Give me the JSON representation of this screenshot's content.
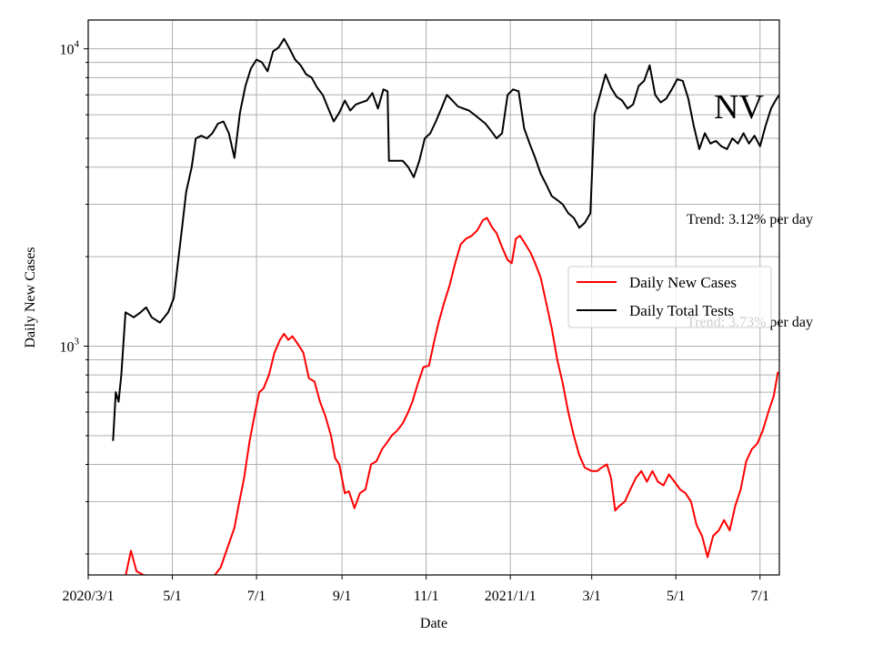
{
  "chart_data": {
    "type": "line",
    "title": "",
    "xlabel": "Date",
    "ylabel": "Daily New Cases",
    "yscale": "log",
    "ylim": [
      170,
      12500
    ],
    "xlim": [
      "2020-03-01",
      "2021-07-15"
    ],
    "grid": true,
    "legend_position": "center-right",
    "x_ticks": [
      {
        "date": "2020-03-01",
        "label": "2020/3/1"
      },
      {
        "date": "2020-05-01",
        "label": "5/1"
      },
      {
        "date": "2020-07-01",
        "label": "7/1"
      },
      {
        "date": "2020-09-01",
        "label": "9/1"
      },
      {
        "date": "2020-11-01",
        "label": "11/1"
      },
      {
        "date": "2021-01-01",
        "label": "2021/1/1"
      },
      {
        "date": "2021-03-01",
        "label": "3/1"
      },
      {
        "date": "2021-05-01",
        "label": "5/1"
      },
      {
        "date": "2021-07-01",
        "label": "7/1"
      }
    ],
    "y_major_ticks": [
      {
        "value": 1000,
        "base": "10",
        "exp": "3"
      },
      {
        "value": 10000,
        "base": "10",
        "exp": "4"
      }
    ],
    "y_minor_ticks": [
      200,
      300,
      400,
      500,
      600,
      700,
      800,
      900,
      2000,
      3000,
      4000,
      5000,
      6000,
      7000,
      8000,
      9000
    ],
    "annotations": {
      "state": "NV",
      "trend_cases": "Trend: 3.73% per day",
      "trend_tests": "Trend: 3.12% per day"
    },
    "series": [
      {
        "name": "Daily New Cases",
        "color": "#ff0000",
        "points": [
          [
            "2020-03-18",
            150
          ],
          [
            "2020-03-28",
            168
          ],
          [
            "2020-04-01",
            205
          ],
          [
            "2020-04-05",
            175
          ],
          [
            "2020-04-10",
            170
          ],
          [
            "2020-04-20",
            165
          ],
          [
            "2020-05-01",
            160
          ],
          [
            "2020-05-15",
            150
          ],
          [
            "2020-05-31",
            168
          ],
          [
            "2020-06-05",
            180
          ],
          [
            "2020-06-10",
            210
          ],
          [
            "2020-06-15",
            245
          ],
          [
            "2020-06-18",
            290
          ],
          [
            "2020-06-22",
            360
          ],
          [
            "2020-06-26",
            480
          ],
          [
            "2020-06-30",
            600
          ],
          [
            "2020-07-03",
            700
          ],
          [
            "2020-07-06",
            720
          ],
          [
            "2020-07-10",
            800
          ],
          [
            "2020-07-14",
            950
          ],
          [
            "2020-07-18",
            1050
          ],
          [
            "2020-07-21",
            1100
          ],
          [
            "2020-07-24",
            1050
          ],
          [
            "2020-07-27",
            1080
          ],
          [
            "2020-08-01",
            1000
          ],
          [
            "2020-08-04",
            950
          ],
          [
            "2020-08-08",
            780
          ],
          [
            "2020-08-12",
            760
          ],
          [
            "2020-08-16",
            650
          ],
          [
            "2020-08-20",
            580
          ],
          [
            "2020-08-24",
            500
          ],
          [
            "2020-08-27",
            420
          ],
          [
            "2020-08-30",
            400
          ],
          [
            "2020-09-03",
            320
          ],
          [
            "2020-09-06",
            325
          ],
          [
            "2020-09-10",
            285
          ],
          [
            "2020-09-14",
            320
          ],
          [
            "2020-09-18",
            330
          ],
          [
            "2020-09-22",
            400
          ],
          [
            "2020-09-26",
            410
          ],
          [
            "2020-09-30",
            450
          ],
          [
            "2020-10-03",
            470
          ],
          [
            "2020-10-07",
            500
          ],
          [
            "2020-10-11",
            520
          ],
          [
            "2020-10-15",
            550
          ],
          [
            "2020-10-19",
            600
          ],
          [
            "2020-10-22",
            650
          ],
          [
            "2020-10-26",
            750
          ],
          [
            "2020-10-30",
            850
          ],
          [
            "2020-11-03",
            860
          ],
          [
            "2020-11-07",
            1050
          ],
          [
            "2020-11-10",
            1200
          ],
          [
            "2020-11-14",
            1400
          ],
          [
            "2020-11-18",
            1600
          ],
          [
            "2020-11-22",
            1900
          ],
          [
            "2020-11-26",
            2200
          ],
          [
            "2020-11-30",
            2300
          ],
          [
            "2020-12-04",
            2350
          ],
          [
            "2020-12-08",
            2450
          ],
          [
            "2020-12-12",
            2650
          ],
          [
            "2020-12-15",
            2700
          ],
          [
            "2020-12-19",
            2500
          ],
          [
            "2020-12-22",
            2400
          ],
          [
            "2020-12-26",
            2150
          ],
          [
            "2020-12-30",
            1950
          ],
          [
            "2021-01-02",
            1900
          ],
          [
            "2021-01-05",
            2300
          ],
          [
            "2021-01-08",
            2350
          ],
          [
            "2021-01-12",
            2200
          ],
          [
            "2021-01-16",
            2050
          ],
          [
            "2021-01-19",
            1900
          ],
          [
            "2021-01-23",
            1700
          ],
          [
            "2021-01-27",
            1400
          ],
          [
            "2021-01-31",
            1150
          ],
          [
            "2021-02-04",
            900
          ],
          [
            "2021-02-08",
            750
          ],
          [
            "2021-02-12",
            600
          ],
          [
            "2021-02-16",
            500
          ],
          [
            "2021-02-20",
            430
          ],
          [
            "2021-02-24",
            390
          ],
          [
            "2021-03-01",
            380
          ],
          [
            "2021-03-05",
            380
          ],
          [
            "2021-03-08",
            390
          ],
          [
            "2021-03-12",
            400
          ],
          [
            "2021-03-15",
            360
          ],
          [
            "2021-03-18",
            280
          ],
          [
            "2021-03-21",
            290
          ],
          [
            "2021-03-25",
            300
          ],
          [
            "2021-03-29",
            330
          ],
          [
            "2021-04-02",
            360
          ],
          [
            "2021-04-06",
            380
          ],
          [
            "2021-04-10",
            350
          ],
          [
            "2021-04-14",
            380
          ],
          [
            "2021-04-18",
            350
          ],
          [
            "2021-04-22",
            340
          ],
          [
            "2021-04-26",
            370
          ],
          [
            "2021-04-30",
            350
          ],
          [
            "2021-05-04",
            330
          ],
          [
            "2021-05-08",
            320
          ],
          [
            "2021-05-12",
            300
          ],
          [
            "2021-05-16",
            250
          ],
          [
            "2021-05-20",
            230
          ],
          [
            "2021-05-24",
            195
          ],
          [
            "2021-05-28",
            230
          ],
          [
            "2021-06-01",
            240
          ],
          [
            "2021-06-05",
            260
          ],
          [
            "2021-06-09",
            240
          ],
          [
            "2021-06-13",
            290
          ],
          [
            "2021-06-17",
            330
          ],
          [
            "2021-06-21",
            410
          ],
          [
            "2021-06-25",
            450
          ],
          [
            "2021-06-29",
            470
          ],
          [
            "2021-07-03",
            520
          ],
          [
            "2021-07-07",
            600
          ],
          [
            "2021-07-11",
            680
          ],
          [
            "2021-07-14",
            820
          ]
        ]
      },
      {
        "name": "Daily Total Tests",
        "color": "#000000",
        "points": [
          [
            "2020-03-19",
            480
          ],
          [
            "2020-03-21",
            700
          ],
          [
            "2020-03-23",
            650
          ],
          [
            "2020-03-25",
            800
          ],
          [
            "2020-03-28",
            1300
          ],
          [
            "2020-04-03",
            1250
          ],
          [
            "2020-04-08",
            1300
          ],
          [
            "2020-04-12",
            1350
          ],
          [
            "2020-04-16",
            1250
          ],
          [
            "2020-04-22",
            1200
          ],
          [
            "2020-04-28",
            1300
          ],
          [
            "2020-05-02",
            1450
          ],
          [
            "2020-05-05",
            1900
          ],
          [
            "2020-05-08",
            2500
          ],
          [
            "2020-05-11",
            3300
          ],
          [
            "2020-05-15",
            4000
          ],
          [
            "2020-05-18",
            5000
          ],
          [
            "2020-05-22",
            5100
          ],
          [
            "2020-05-26",
            5000
          ],
          [
            "2020-05-30",
            5200
          ],
          [
            "2020-06-03",
            5600
          ],
          [
            "2020-06-07",
            5700
          ],
          [
            "2020-06-11",
            5200
          ],
          [
            "2020-06-15",
            4300
          ],
          [
            "2020-06-19",
            6100
          ],
          [
            "2020-06-23",
            7500
          ],
          [
            "2020-06-27",
            8600
          ],
          [
            "2020-07-01",
            9200
          ],
          [
            "2020-07-05",
            9000
          ],
          [
            "2020-07-09",
            8400
          ],
          [
            "2020-07-13",
            9800
          ],
          [
            "2020-07-17",
            10100
          ],
          [
            "2020-07-21",
            10800
          ],
          [
            "2020-07-25",
            10000
          ],
          [
            "2020-07-29",
            9200
          ],
          [
            "2020-08-02",
            8800
          ],
          [
            "2020-08-06",
            8200
          ],
          [
            "2020-08-10",
            8000
          ],
          [
            "2020-08-14",
            7400
          ],
          [
            "2020-08-18",
            7000
          ],
          [
            "2020-08-22",
            6300
          ],
          [
            "2020-08-26",
            5700
          ],
          [
            "2020-08-30",
            6100
          ],
          [
            "2020-09-03",
            6700
          ],
          [
            "2020-09-07",
            6200
          ],
          [
            "2020-09-11",
            6500
          ],
          [
            "2020-09-15",
            6600
          ],
          [
            "2020-09-19",
            6700
          ],
          [
            "2020-09-23",
            7100
          ],
          [
            "2020-09-27",
            6300
          ],
          [
            "2020-10-01",
            7300
          ],
          [
            "2020-10-04",
            7200
          ],
          [
            "2020-10-05",
            4200
          ],
          [
            "2020-10-15",
            4200
          ],
          [
            "2020-10-19",
            4000
          ],
          [
            "2020-10-23",
            3700
          ],
          [
            "2020-10-27",
            4200
          ],
          [
            "2020-10-31",
            5000
          ],
          [
            "2020-11-04",
            5200
          ],
          [
            "2020-11-08",
            5700
          ],
          [
            "2020-11-12",
            6300
          ],
          [
            "2020-11-16",
            7000
          ],
          [
            "2020-11-20",
            6700
          ],
          [
            "2020-11-24",
            6400
          ],
          [
            "2020-11-28",
            6300
          ],
          [
            "2020-12-02",
            6200
          ],
          [
            "2020-12-06",
            6000
          ],
          [
            "2020-12-10",
            5800
          ],
          [
            "2020-12-14",
            5600
          ],
          [
            "2020-12-18",
            5300
          ],
          [
            "2020-12-22",
            5000
          ],
          [
            "2020-12-26",
            5200
          ],
          [
            "2020-12-30",
            7000
          ],
          [
            "2021-01-03",
            7300
          ],
          [
            "2021-01-07",
            7200
          ],
          [
            "2021-01-11",
            5400
          ],
          [
            "2021-01-15",
            4800
          ],
          [
            "2021-01-19",
            4300
          ],
          [
            "2021-01-23",
            3800
          ],
          [
            "2021-01-27",
            3500
          ],
          [
            "2021-01-31",
            3200
          ],
          [
            "2021-02-04",
            3100
          ],
          [
            "2021-02-08",
            3000
          ],
          [
            "2021-02-12",
            2800
          ],
          [
            "2021-02-16",
            2700
          ],
          [
            "2021-02-20",
            2500
          ],
          [
            "2021-02-24",
            2600
          ],
          [
            "2021-02-28",
            2800
          ],
          [
            "2021-03-03",
            6000
          ],
          [
            "2021-03-07",
            7000
          ],
          [
            "2021-03-11",
            8200
          ],
          [
            "2021-03-15",
            7400
          ],
          [
            "2021-03-19",
            6900
          ],
          [
            "2021-03-23",
            6700
          ],
          [
            "2021-03-27",
            6300
          ],
          [
            "2021-03-31",
            6500
          ],
          [
            "2021-04-04",
            7500
          ],
          [
            "2021-04-08",
            7800
          ],
          [
            "2021-04-12",
            8800
          ],
          [
            "2021-04-16",
            7000
          ],
          [
            "2021-04-20",
            6600
          ],
          [
            "2021-04-24",
            6800
          ],
          [
            "2021-04-28",
            7300
          ],
          [
            "2021-05-02",
            7900
          ],
          [
            "2021-05-06",
            7800
          ],
          [
            "2021-05-10",
            6800
          ],
          [
            "2021-05-14",
            5500
          ],
          [
            "2021-05-18",
            4600
          ],
          [
            "2021-05-22",
            5200
          ],
          [
            "2021-05-26",
            4800
          ],
          [
            "2021-05-30",
            4900
          ],
          [
            "2021-06-03",
            4700
          ],
          [
            "2021-06-07",
            4600
          ],
          [
            "2021-06-11",
            5000
          ],
          [
            "2021-06-15",
            4800
          ],
          [
            "2021-06-19",
            5200
          ],
          [
            "2021-06-23",
            4800
          ],
          [
            "2021-06-27",
            5100
          ],
          [
            "2021-07-01",
            4700
          ],
          [
            "2021-07-05",
            5500
          ],
          [
            "2021-07-09",
            6300
          ],
          [
            "2021-07-13",
            6800
          ],
          [
            "2021-07-15",
            7000
          ]
        ]
      }
    ]
  }
}
